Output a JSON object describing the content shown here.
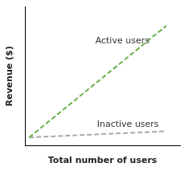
{
  "chart_data": {
    "type": "line",
    "x_label": "Total number of users",
    "y_label": "Revenue ($)",
    "x": [
      0.0,
      10.0
    ],
    "series": [
      {
        "name": "Active users",
        "color": "#6ab04c",
        "line_style": "dashed",
        "values": [
          0.05,
          7.25
        ]
      },
      {
        "name": "Inactive users",
        "color": "#aaaaaa",
        "line_style": "dashed",
        "values": [
          0.05,
          0.45
        ]
      }
    ],
    "xlim": [
      -0.3,
      11.0
    ],
    "ylim": [
      -0.5,
      8.5
    ],
    "tick_labels": false,
    "grid": false
  }
}
